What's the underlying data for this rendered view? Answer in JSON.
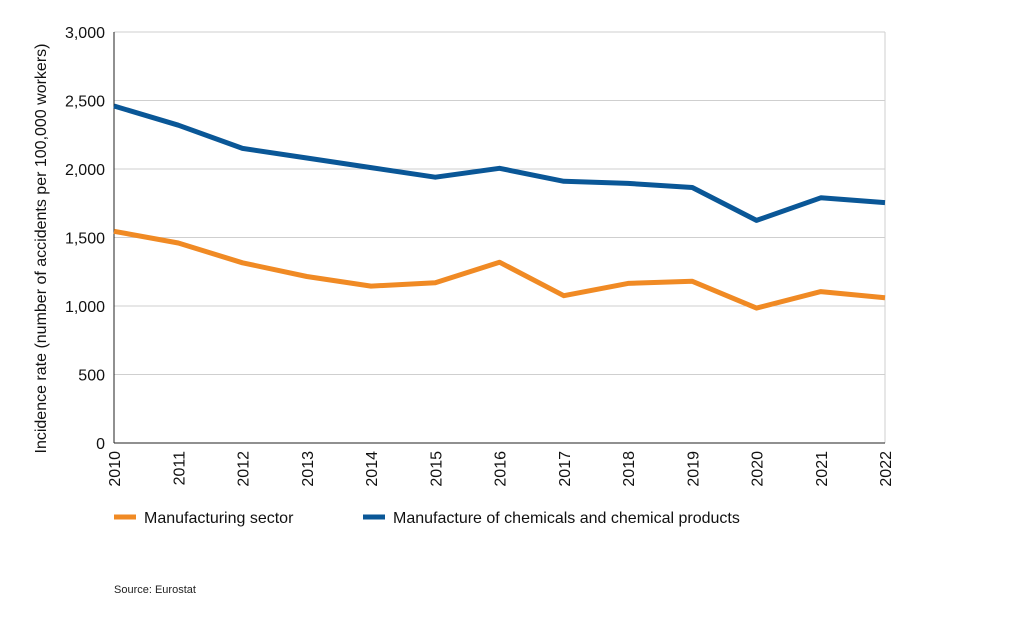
{
  "chart_data": {
    "type": "line",
    "title": "",
    "xlabel": "",
    "ylabel": "Incidence rate (number of accidents per 100,000 workers)",
    "ylim": [
      0,
      3000
    ],
    "yticks": [
      0,
      500,
      1000,
      1500,
      2000,
      2500,
      3000
    ],
    "ytick_labels": [
      "0",
      "500",
      "1,000",
      "1,500",
      "2,000",
      "2,500",
      "3,000"
    ],
    "categories": [
      "2010",
      "2011",
      "2012",
      "2013",
      "2014",
      "2015",
      "2016",
      "2017",
      "2018",
      "2019",
      "2020",
      "2021",
      "2022"
    ],
    "grid": true,
    "legend_position": "bottom-left",
    "series": [
      {
        "name": "Manufacturing sector",
        "color": "#f08a24",
        "values": [
          1545,
          1460,
          1315,
          1215,
          1145,
          1170,
          1320,
          1075,
          1165,
          1180,
          985,
          1105,
          1060
        ]
      },
      {
        "name": "Manufacture of chemicals and chemical products",
        "color": "#0a5797",
        "values": [
          2460,
          2320,
          2150,
          2080,
          2010,
          1940,
          2005,
          1910,
          1895,
          1865,
          1625,
          1790,
          1755
        ]
      }
    ],
    "source": "Source: Eurostat"
  }
}
